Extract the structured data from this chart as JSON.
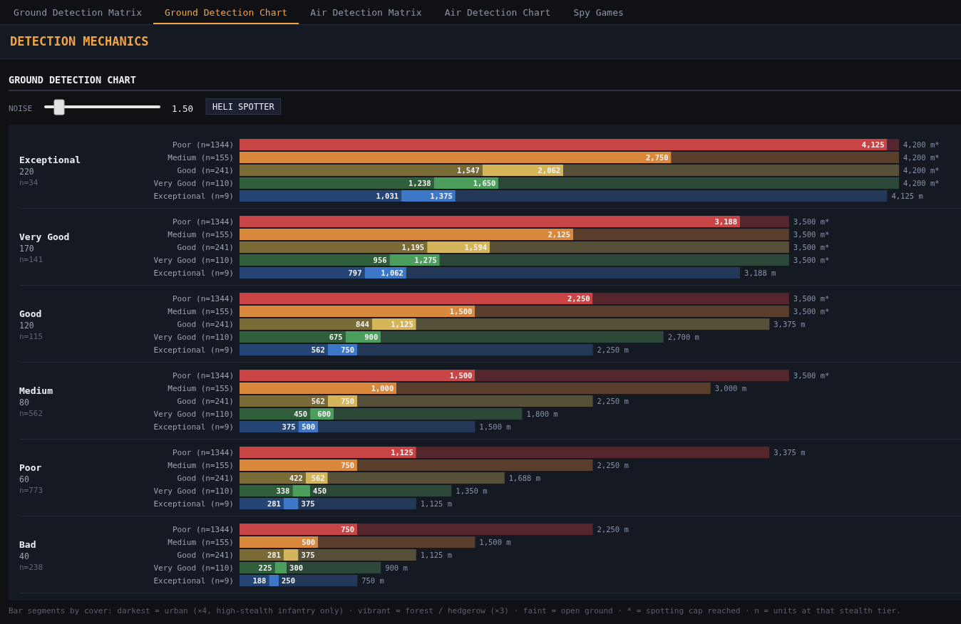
{
  "chart_data": [
    {
      "type": "other",
      "title": "DETECTION MECHANICS",
      "subtitle": "GROUND DETECTION CHART",
      "annotations": [
        "Ground Detection Matrix",
        "Ground Detection Chart",
        "Air Detection Matrix",
        "Air Detection Chart",
        "Spy Games",
        "NOISE",
        "1.50",
        "HELI SPOTTER"
      ]
    },
    {
      "type": "bar",
      "orientation": "horizontal",
      "stacked": true,
      "categories": [
        "Poor (n=1344)",
        "Medium (n=155)",
        "Good (n=241)",
        "Very Good (n=110)",
        "Exceptional (n=9)"
      ],
      "series": [
        {
          "colors": [
            null,
            null,
            "#7a6a35",
            "#2f5e3a",
            "#244575"
          ],
          "values": [
            null,
            null,
            1547,
            1238,
            1031
          ],
          "value_labels": [
            null,
            null,
            "1,547",
            "1,238",
            "1,031"
          ]
        },
        {
          "colors": [
            "#c94545",
            "#d9883c",
            "#d4b55a",
            "#4c9e5c",
            "#3d78c8"
          ],
          "values": [
            4125,
            2750,
            515,
            412,
            344
          ],
          "value_labels": [
            "4,125",
            "2,750",
            null,
            null,
            null
          ]
        },
        {
          "colors": [
            "#55262c",
            "#5a3e2c",
            "#565038",
            "#2c4838",
            "#243858"
          ],
          "values": [
            75,
            1450,
            2138,
            2550,
            2750
          ]
        }
      ],
      "totals": [
        "4,200 m*",
        "4,200 m*",
        "4,200 m*",
        "4,200 m*",
        "4,125 m"
      ],
      "annotations": [
        "Exceptional",
        "220",
        "n=34",
        {
          "text": "2,062",
          "x": 2062,
          "y": "Good (n=241)"
        },
        {
          "text": "1,650",
          "x": 1650,
          "y": "Very Good (n=110)"
        },
        {
          "text": "1,375",
          "x": 1375,
          "y": "Exceptional (n=9)"
        }
      ]
    },
    {
      "type": "bar",
      "orientation": "horizontal",
      "stacked": true,
      "categories": [
        "Poor (n=1344)",
        "Medium (n=155)",
        "Good (n=241)",
        "Very Good (n=110)",
        "Exceptional (n=9)"
      ],
      "series": [
        {
          "colors": [
            null,
            null,
            "#7a6a35",
            "#2f5e3a",
            "#244575"
          ],
          "values": [
            null,
            null,
            1195,
            956,
            797
          ],
          "value_labels": [
            null,
            null,
            "1,195",
            "956",
            "797"
          ]
        },
        {
          "colors": [
            "#c94545",
            "#d9883c",
            "#d4b55a",
            "#4c9e5c",
            "#3d78c8"
          ],
          "values": [
            3188,
            2125,
            399,
            319,
            265
          ],
          "value_labels": [
            "3,188",
            "2,125",
            null,
            null,
            null
          ]
        },
        {
          "colors": [
            "#55262c",
            "#5a3e2c",
            "#565038",
            "#2c4838",
            "#243858"
          ],
          "values": [
            312,
            1375,
            1906,
            2225,
            2126
          ]
        }
      ],
      "totals": [
        "3,500 m*",
        "3,500 m*",
        "3,500 m*",
        "3,500 m*",
        "3,188 m"
      ],
      "annotations": [
        "Very Good",
        "170",
        "n=141",
        {
          "text": "1,594",
          "x": 1594,
          "y": "Good (n=241)"
        },
        {
          "text": "1,275",
          "x": 1275,
          "y": "Very Good (n=110)"
        },
        {
          "text": "1,062",
          "x": 1062,
          "y": "Exceptional (n=9)"
        }
      ]
    },
    {
      "type": "bar",
      "orientation": "horizontal",
      "stacked": true,
      "categories": [
        "Poor (n=1344)",
        "Medium (n=155)",
        "Good (n=241)",
        "Very Good (n=110)",
        "Exceptional (n=9)"
      ],
      "series": [
        {
          "colors": [
            null,
            null,
            "#7a6a35",
            "#2f5e3a",
            "#244575"
          ],
          "values": [
            null,
            null,
            844,
            675,
            562
          ],
          "value_labels": [
            null,
            null,
            "844",
            "675",
            "562"
          ]
        },
        {
          "colors": [
            "#c94545",
            "#d9883c",
            "#d4b55a",
            "#4c9e5c",
            "#3d78c8"
          ],
          "values": [
            2250,
            1500,
            281,
            225,
            188
          ],
          "value_labels": [
            "2,250",
            "1,500",
            null,
            null,
            null
          ]
        },
        {
          "colors": [
            "#55262c",
            "#5a3e2c",
            "#565038",
            "#2c4838",
            "#243858"
          ],
          "values": [
            1250,
            2000,
            2250,
            1800,
            1500
          ]
        }
      ],
      "totals": [
        "3,500 m*",
        "3,500 m*",
        "3,375 m",
        "2,700 m",
        "2,250 m"
      ],
      "annotations": [
        "Good",
        "120",
        "n=115",
        {
          "text": "1,125",
          "x": 1125,
          "y": "Good (n=241)"
        },
        {
          "text": "900",
          "x": 900,
          "y": "Very Good (n=110)"
        },
        {
          "text": "750",
          "x": 750,
          "y": "Exceptional (n=9)"
        }
      ]
    },
    {
      "type": "bar",
      "orientation": "horizontal",
      "stacked": true,
      "categories": [
        "Poor (n=1344)",
        "Medium (n=155)",
        "Good (n=241)",
        "Very Good (n=110)",
        "Exceptional (n=9)"
      ],
      "series": [
        {
          "colors": [
            null,
            null,
            "#7a6a35",
            "#2f5e3a",
            "#244575"
          ],
          "values": [
            null,
            null,
            562,
            450,
            375
          ],
          "value_labels": [
            null,
            null,
            "562",
            "450",
            "375"
          ]
        },
        {
          "colors": [
            "#c94545",
            "#d9883c",
            "#d4b55a",
            "#4c9e5c",
            "#3d78c8"
          ],
          "values": [
            1500,
            1000,
            188,
            150,
            125
          ],
          "value_labels": [
            "1,500",
            "1,000",
            null,
            null,
            null
          ]
        },
        {
          "colors": [
            "#55262c",
            "#5a3e2c",
            "#565038",
            "#2c4838",
            "#243858"
          ],
          "values": [
            2000,
            2000,
            1500,
            1200,
            1000
          ]
        }
      ],
      "totals": [
        "3,500 m*",
        "3,000 m",
        "2,250 m",
        "1,800 m",
        "1,500 m"
      ],
      "annotations": [
        "Medium",
        "80",
        "n=562",
        {
          "text": "750",
          "x": 750,
          "y": "Good (n=241)"
        },
        {
          "text": "600",
          "x": 600,
          "y": "Very Good (n=110)"
        },
        {
          "text": "500",
          "x": 500,
          "y": "Exceptional (n=9)"
        }
      ]
    },
    {
      "type": "bar",
      "orientation": "horizontal",
      "stacked": true,
      "categories": [
        "Poor (n=1344)",
        "Medium (n=155)",
        "Good (n=241)",
        "Very Good (n=110)",
        "Exceptional (n=9)"
      ],
      "series": [
        {
          "colors": [
            null,
            null,
            "#7a6a35",
            "#2f5e3a",
            "#244575"
          ],
          "values": [
            null,
            null,
            422,
            338,
            281
          ],
          "value_labels": [
            null,
            null,
            "422",
            "338",
            "281"
          ]
        },
        {
          "colors": [
            "#c94545",
            "#d9883c",
            "#d4b55a",
            "#4c9e5c",
            "#3d78c8"
          ],
          "values": [
            1125,
            750,
            140,
            112,
            94
          ],
          "value_labels": [
            "1,125",
            "750",
            null,
            null,
            null
          ]
        },
        {
          "colors": [
            "#55262c",
            "#5a3e2c",
            "#565038",
            "#2c4838",
            "#243858"
          ],
          "values": [
            2250,
            1500,
            1126,
            900,
            750
          ]
        }
      ],
      "totals": [
        "3,375 m",
        "2,250 m",
        "1,688 m",
        "1,350 m",
        "1,125 m"
      ],
      "annotations": [
        "Poor",
        "60",
        "n=773",
        {
          "text": "562",
          "x": 562,
          "y": "Good (n=241)"
        },
        {
          "text": "450",
          "x": 450,
          "y": "Very Good (n=110)"
        },
        {
          "text": "375",
          "x": 375,
          "y": "Exceptional (n=9)"
        }
      ]
    },
    {
      "type": "bar",
      "orientation": "horizontal",
      "stacked": true,
      "categories": [
        "Poor (n=1344)",
        "Medium (n=155)",
        "Good (n=241)",
        "Very Good (n=110)",
        "Exceptional (n=9)"
      ],
      "series": [
        {
          "colors": [
            null,
            null,
            "#7a6a35",
            "#2f5e3a",
            "#244575"
          ],
          "values": [
            null,
            null,
            281,
            225,
            188
          ],
          "value_labels": [
            null,
            null,
            "281",
            "225",
            "188"
          ]
        },
        {
          "colors": [
            "#c94545",
            "#d9883c",
            "#d4b55a",
            "#4c9e5c",
            "#3d78c8"
          ],
          "values": [
            750,
            500,
            94,
            75,
            62
          ],
          "value_labels": [
            "750",
            "500",
            null,
            null,
            null
          ]
        },
        {
          "colors": [
            "#55262c",
            "#5a3e2c",
            "#565038",
            "#2c4838",
            "#243858"
          ],
          "values": [
            1500,
            1000,
            750,
            600,
            500
          ]
        }
      ],
      "totals": [
        "2,250 m",
        "1,500 m",
        "1,125 m",
        "900 m",
        "750 m"
      ],
      "annotations": [
        "Bad",
        "40",
        "n=238",
        {
          "text": "375",
          "x": 375,
          "y": "Good (n=241)"
        },
        {
          "text": "300",
          "x": 300,
          "y": "Very Good (n=110)"
        },
        {
          "text": "250",
          "x": 250,
          "y": "Exceptional (n=9)"
        },
        "Bar segments by cover: darkest = urban (×4, high-stealth infantry only) · vibrant = forest / hedgerow (×3) · faint = open ground · * = spotting cap reached · n = units at that stealth tier."
      ]
    }
  ]
}
